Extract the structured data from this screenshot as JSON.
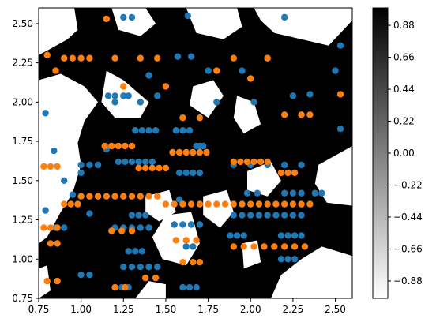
{
  "chart_data": {
    "type": "scatter",
    "title": "",
    "xlabel": "",
    "ylabel": "",
    "xlim": [
      0.75,
      2.6
    ],
    "ylim": [
      0.75,
      2.6
    ],
    "x_ticks": [
      "0.75",
      "1.00",
      "1.25",
      "1.50",
      "1.75",
      "2.00",
      "2.25",
      "2.50"
    ],
    "y_ticks": [
      "0.75",
      "1.00",
      "1.25",
      "1.50",
      "1.75",
      "2.00",
      "2.25",
      "2.50"
    ],
    "background": "decision-surface",
    "colormap": "gray_r",
    "colorbar": {
      "range": [
        -1.0,
        1.0
      ],
      "ticks": [
        "0.88",
        "0.66",
        "0.44",
        "0.22",
        "0.00",
        "−0.22",
        "−0.44",
        "−0.66",
        "−0.88"
      ],
      "tick_values": [
        0.88,
        0.66,
        0.44,
        0.22,
        0.0,
        -0.22,
        -0.44,
        -0.66,
        -0.88
      ]
    },
    "grid": false,
    "colors": {
      "class_a": "#1f77b4",
      "class_b": "#ff7f0e",
      "surface_dark": "#000000",
      "surface_light": "#ffffff"
    },
    "surface_white_regions": [
      [
        [
          0.75,
          2.6
        ],
        [
          0.96,
          2.6
        ],
        [
          0.98,
          2.46
        ],
        [
          0.92,
          2.4
        ],
        [
          0.82,
          2.34
        ],
        [
          0.75,
          2.3
        ]
      ],
      [
        [
          0.75,
          2.14
        ],
        [
          0.88,
          2.18
        ],
        [
          1.02,
          2.1
        ],
        [
          1.1,
          2.0
        ],
        [
          1.02,
          1.88
        ],
        [
          0.98,
          1.74
        ],
        [
          1.0,
          1.6
        ],
        [
          0.95,
          1.42
        ],
        [
          0.88,
          1.3
        ],
        [
          0.8,
          1.14
        ],
        [
          0.75,
          1.1
        ]
      ],
      [
        [
          1.15,
          2.2
        ],
        [
          1.25,
          2.14
        ],
        [
          1.4,
          2.0
        ],
        [
          1.35,
          1.9
        ],
        [
          1.2,
          1.9
        ],
        [
          1.12,
          2.0
        ]
      ],
      [
        [
          1.18,
          2.6
        ],
        [
          1.38,
          2.6
        ],
        [
          1.44,
          2.5
        ],
        [
          1.35,
          2.42
        ],
        [
          1.22,
          2.46
        ]
      ],
      [
        [
          1.62,
          2.6
        ],
        [
          1.92,
          2.6
        ],
        [
          1.95,
          2.48
        ],
        [
          1.84,
          2.4
        ],
        [
          1.68,
          2.44
        ]
      ],
      [
        [
          2.02,
          2.6
        ],
        [
          2.6,
          2.6
        ],
        [
          2.6,
          2.52
        ],
        [
          2.46,
          2.36
        ],
        [
          2.3,
          2.4
        ],
        [
          2.14,
          2.44
        ],
        [
          2.06,
          2.52
        ]
      ],
      [
        [
          1.66,
          2.1
        ],
        [
          1.78,
          2.14
        ],
        [
          1.84,
          2.04
        ],
        [
          1.75,
          1.9
        ],
        [
          1.64,
          1.98
        ]
      ],
      [
        [
          1.92,
          2.04
        ],
        [
          2.02,
          2.0
        ],
        [
          2.06,
          1.86
        ],
        [
          1.96,
          1.8
        ],
        [
          1.9,
          1.9
        ]
      ],
      [
        [
          1.98,
          1.56
        ],
        [
          2.12,
          1.62
        ],
        [
          2.18,
          1.5
        ],
        [
          2.1,
          1.4
        ],
        [
          1.98,
          1.44
        ]
      ],
      [
        [
          2.4,
          1.6
        ],
        [
          2.6,
          1.72
        ],
        [
          2.6,
          1.34
        ],
        [
          2.45,
          1.36
        ],
        [
          2.38,
          1.48
        ]
      ],
      [
        [
          1.72,
          1.4
        ],
        [
          1.86,
          1.44
        ],
        [
          1.9,
          1.3
        ],
        [
          1.82,
          1.2
        ],
        [
          1.72,
          1.28
        ]
      ],
      [
        [
          1.38,
          1.4
        ],
        [
          1.52,
          1.44
        ],
        [
          1.56,
          1.3
        ],
        [
          1.46,
          1.24
        ],
        [
          1.38,
          1.3
        ]
      ],
      [
        [
          1.5,
          1.28
        ],
        [
          1.65,
          1.3
        ],
        [
          1.7,
          1.1
        ],
        [
          1.62,
          0.96
        ],
        [
          1.48,
          1.0
        ],
        [
          1.42,
          1.14
        ]
      ],
      [
        [
          1.95,
          1.1
        ],
        [
          2.04,
          1.12
        ],
        [
          2.06,
          0.98
        ],
        [
          1.96,
          0.94
        ]
      ],
      [
        [
          2.12,
          0.75
        ],
        [
          2.6,
          0.75
        ],
        [
          2.6,
          1.02
        ],
        [
          2.42,
          1.08
        ],
        [
          2.3,
          1.0
        ],
        [
          2.18,
          0.9
        ]
      ],
      [
        [
          1.32,
          0.75
        ],
        [
          1.5,
          0.75
        ],
        [
          1.5,
          0.84
        ],
        [
          1.4,
          0.86
        ]
      ],
      [
        [
          0.75,
          0.94
        ],
        [
          0.8,
          0.96
        ],
        [
          0.82,
          0.8
        ],
        [
          0.75,
          0.75
        ]
      ]
    ],
    "series": [
      {
        "name": "",
        "color": "#1f77b4",
        "x": [
          0.79,
          0.79,
          0.84,
          0.9,
          0.95,
          1.0,
          1.05,
          1.15,
          1.2,
          1.25,
          1.3,
          1.35,
          1.4,
          1.45,
          1.57,
          1.63,
          1.65,
          1.7,
          1.75,
          1.8,
          1.9,
          1.95,
          2.02,
          2.1,
          2.2,
          2.25,
          2.35,
          2.5,
          2.53,
          2.53,
          1.16,
          1.2,
          1.25,
          1.28,
          1.32,
          1.36,
          1.4,
          1.44,
          1.22,
          1.26,
          1.3,
          1.34,
          1.38,
          1.42,
          1.3,
          1.34,
          1.38,
          1.56,
          1.6,
          1.64,
          1.68,
          1.72,
          1.58,
          1.62,
          1.66,
          1.7,
          1.9,
          1.95,
          2.0,
          2.05,
          2.1,
          2.15,
          2.2,
          2.25,
          2.3,
          1.88,
          1.92,
          1.96,
          2.18,
          2.22,
          2.26,
          2.3,
          1.0,
          1.05,
          1.1,
          0.85,
          0.9,
          1.2,
          1.25,
          1.3,
          1.35,
          1.4,
          1.28,
          1.32,
          1.36,
          1.55,
          1.6,
          1.65,
          1.7,
          1.62,
          1.66,
          2.0,
          2.1,
          2.2,
          2.3,
          2.2,
          2.25,
          2.3,
          2.38,
          2.42,
          1.98,
          2.04,
          2.18,
          2.22,
          2.26,
          1.25,
          1.3,
          1.35,
          1.4,
          1.45,
          1.2,
          1.24,
          1.28,
          1.6,
          1.64,
          1.68,
          1.58,
          1.0,
          1.05
        ],
        "y": [
          1.93,
          1.31,
          1.69,
          1.5,
          1.41,
          1.55,
          1.29,
          1.7,
          2.0,
          2.54,
          2.54,
          2.0,
          2.17,
          2.04,
          2.29,
          2.55,
          2.29,
          1.72,
          2.2,
          2.0,
          1.6,
          2.2,
          2.0,
          2.28,
          2.54,
          2.04,
          2.05,
          2.2,
          2.36,
          1.83,
          2.04,
          2.04,
          2.04,
          2.04,
          1.82,
          1.82,
          1.82,
          1.82,
          1.62,
          1.62,
          1.62,
          1.62,
          1.62,
          1.62,
          1.28,
          1.28,
          1.28,
          1.82,
          1.82,
          1.82,
          1.72,
          1.72,
          1.55,
          1.55,
          1.55,
          1.55,
          1.28,
          1.28,
          1.28,
          1.28,
          1.28,
          1.28,
          1.28,
          1.28,
          1.28,
          1.15,
          1.15,
          1.15,
          1.15,
          1.15,
          1.15,
          1.15,
          1.6,
          1.6,
          1.6,
          1.2,
          1.2,
          1.2,
          1.2,
          1.2,
          1.2,
          1.2,
          1.05,
          1.05,
          1.05,
          1.22,
          1.22,
          1.22,
          1.22,
          1.08,
          1.08,
          1.6,
          1.6,
          1.6,
          1.6,
          1.42,
          1.42,
          1.42,
          1.42,
          1.42,
          1.42,
          1.42,
          1.0,
          1.0,
          1.0,
          0.95,
          0.95,
          0.95,
          0.95,
          0.95,
          0.82,
          0.82,
          0.82,
          0.82,
          0.82,
          0.82,
          1.38,
          0.9,
          0.9
        ]
      },
      {
        "name": "",
        "color": "#ff7f0e",
        "x": [
          0.8,
          0.85,
          0.9,
          0.95,
          1.0,
          1.05,
          1.15,
          1.2,
          1.25,
          1.35,
          1.45,
          1.5,
          1.6,
          1.7,
          1.8,
          1.9,
          2.0,
          2.1,
          2.2,
          2.3,
          2.35,
          2.53,
          0.78,
          0.82,
          0.86,
          0.9,
          0.94,
          0.98,
          0.82,
          0.86,
          1.14,
          1.18,
          1.22,
          1.26,
          1.3,
          1.34,
          1.38,
          1.42,
          1.46,
          1.5,
          1.54,
          1.58,
          1.62,
          1.66,
          1.7,
          1.74,
          1.9,
          1.94,
          1.98,
          2.02,
          2.06,
          2.1,
          2.18,
          2.22,
          2.26,
          1.0,
          1.05,
          1.1,
          1.15,
          1.2,
          1.25,
          1.3,
          1.35,
          1.4,
          1.45,
          1.5,
          1.55,
          1.6,
          1.65,
          1.7,
          1.75,
          1.8,
          1.85,
          1.9,
          1.95,
          2.0,
          2.05,
          2.1,
          2.15,
          2.2,
          2.25,
          2.3,
          2.35,
          0.78,
          0.82,
          0.86,
          1.18,
          1.24,
          1.3,
          1.56,
          1.62,
          1.68,
          1.9,
          1.96,
          2.02,
          2.08,
          2.14,
          2.2,
          2.26,
          2.32,
          1.6,
          1.66,
          1.7,
          1.38,
          1.44,
          1.2,
          1.26,
          0.8,
          0.86
        ],
        "y": [
          2.3,
          2.2,
          2.28,
          2.28,
          2.28,
          2.28,
          2.53,
          2.28,
          2.1,
          2.28,
          2.28,
          2.1,
          1.9,
          1.9,
          2.2,
          2.28,
          2.15,
          2.28,
          1.92,
          1.92,
          1.92,
          2.05,
          1.59,
          1.59,
          1.59,
          1.35,
          1.35,
          1.35,
          1.1,
          1.1,
          1.72,
          1.72,
          1.72,
          1.72,
          1.72,
          1.58,
          1.58,
          1.58,
          1.58,
          1.58,
          1.68,
          1.68,
          1.68,
          1.68,
          1.68,
          1.68,
          1.62,
          1.62,
          1.62,
          1.62,
          1.62,
          1.62,
          1.55,
          1.55,
          1.55,
          1.4,
          1.4,
          1.4,
          1.4,
          1.4,
          1.4,
          1.4,
          1.4,
          1.4,
          1.4,
          1.35,
          1.35,
          1.35,
          1.35,
          1.35,
          1.35,
          1.35,
          1.35,
          1.35,
          1.35,
          1.35,
          1.35,
          1.35,
          1.35,
          1.35,
          1.35,
          1.35,
          1.35,
          1.2,
          1.2,
          1.2,
          1.18,
          1.18,
          1.18,
          1.12,
          1.12,
          1.12,
          1.08,
          1.08,
          1.08,
          1.08,
          1.08,
          1.08,
          1.08,
          1.08,
          0.98,
          0.98,
          0.98,
          0.88,
          0.88,
          0.82,
          0.82,
          0.86,
          0.86
        ]
      }
    ]
  }
}
